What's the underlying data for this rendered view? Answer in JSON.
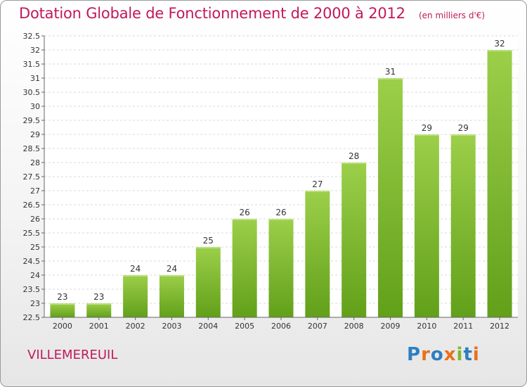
{
  "title": "Dotation Globale de Fonctionnement de 2000 à 2012",
  "unit_note": "(en milliers d'€)",
  "commune": "VILLEMEREUIL",
  "logo": {
    "text": "Proxiti",
    "letters": [
      {
        "ch": "P",
        "color": "#2e7fc0"
      },
      {
        "ch": "r",
        "color": "#e8711c"
      },
      {
        "ch": "o",
        "color": "#2e7fc0"
      },
      {
        "ch": "x",
        "color": "#e8711c"
      },
      {
        "ch": "i",
        "color": "#7cb82f"
      },
      {
        "ch": "t",
        "color": "#2e7fc0"
      },
      {
        "ch": "i",
        "color": "#e8711c"
      }
    ]
  },
  "chart_data": {
    "type": "bar",
    "title": "Dotation Globale de Fonctionnement de 2000 à 2012",
    "categories": [
      "2000",
      "2001",
      "2002",
      "2003",
      "2004",
      "2005",
      "2006",
      "2007",
      "2008",
      "2009",
      "2010",
      "2011",
      "2012"
    ],
    "values": [
      23,
      23,
      24,
      24,
      25,
      26,
      26,
      27,
      28,
      31,
      29,
      29,
      32
    ],
    "ylim": [
      22.5,
      32.5
    ],
    "ytick_step": 0.5,
    "ytick_labels": [
      "22.5",
      "23",
      "23.5",
      "24",
      "24.5",
      "25",
      "25.5",
      "26",
      "26.5",
      "27",
      "27.5",
      "28",
      "28.5",
      "29",
      "29.5",
      "30",
      "30.5",
      "31",
      "31.5",
      "32",
      "32.5"
    ],
    "grid": true,
    "bar_color_top": "#9ccf4a",
    "bar_color_bottom": "#62a01a"
  }
}
